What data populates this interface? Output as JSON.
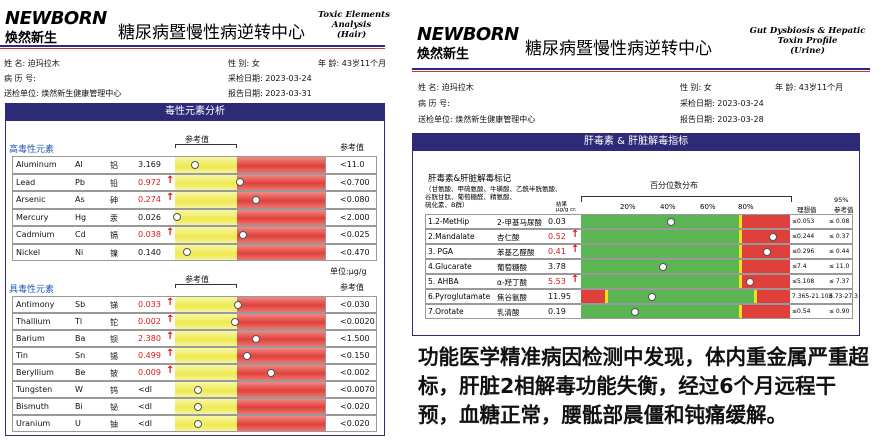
{
  "left_report": {
    "logo": {
      "brand": "NEWBORN",
      "cn": "焕然新生"
    },
    "title": "糖尿病暨慢性病逆转中心",
    "subtitle": [
      "Toxic Elements",
      "Analysis",
      "(Hair)"
    ],
    "patient": {
      "name": "姓    名: 迫玛拉木",
      "sex": "性    别: 女",
      "age": "年 龄: 43岁11个月",
      "record": "病 历 号:",
      "sample_date": "采检日期: 2023-03-24",
      "unit": "送检单位: 焕然新生健康管理中心",
      "report_date": "报告日期: 2023-03-31"
    },
    "section": "毒性元素分析",
    "ref_header": "参考值",
    "unit_note": "单位:μg/g",
    "groups": [
      {
        "name": "高毒性元素",
        "rows": [
          {
            "element": "Aluminum",
            "symbol": "Al",
            "cn": "铝",
            "value": "3.169",
            "high": false,
            "ref": "<11.0"
          },
          {
            "element": "Lead",
            "symbol": "Pb",
            "cn": "铅",
            "value": "0.972",
            "high": true,
            "ref": "<0.700"
          },
          {
            "element": "Arsenic",
            "symbol": "As",
            "cn": "砷",
            "value": "0.274",
            "high": true,
            "ref": "<0.080"
          },
          {
            "element": "Mercury",
            "symbol": "Hg",
            "cn": "汞",
            "value": "0.026",
            "high": false,
            "ref": "<2.000"
          },
          {
            "element": "Cadmium",
            "symbol": "Cd",
            "cn": "镉",
            "value": "0.038",
            "high": true,
            "ref": "<0.025"
          },
          {
            "element": "Nickel",
            "symbol": "Ni",
            "cn": "镍",
            "value": "0.140",
            "high": false,
            "ref": "<0.470"
          }
        ]
      },
      {
        "name": "具毒性元素",
        "rows": [
          {
            "element": "Antimony",
            "symbol": "Sb",
            "cn": "锑",
            "value": "0.033",
            "high": true,
            "ref": "<0.030"
          },
          {
            "element": "Thallium",
            "symbol": "Tl",
            "cn": "铊",
            "value": "0.002",
            "high": true,
            "ref": "<0.0020"
          },
          {
            "element": "Barium",
            "symbol": "Ba",
            "cn": "钡",
            "value": "2.380",
            "high": true,
            "ref": "<1.500"
          },
          {
            "element": "Tin",
            "symbol": "Sn",
            "cn": "锡",
            "value": "0.499",
            "high": true,
            "ref": "<0.150"
          },
          {
            "element": "Beryllium",
            "symbol": "Be",
            "cn": "铍",
            "value": "0.009",
            "high": true,
            "ref": "<0.002"
          },
          {
            "element": "Tungsten",
            "symbol": "W",
            "cn": "钨",
            "value": "<dl",
            "high": false,
            "ref": "<0.0070"
          },
          {
            "element": "Bismuth",
            "symbol": "Bi",
            "cn": "铋",
            "value": "<dl",
            "high": false,
            "ref": "<0.020"
          },
          {
            "element": "Uranium",
            "symbol": "U",
            "cn": "铀",
            "value": "<dl",
            "high": false,
            "ref": "<0.020"
          }
        ]
      }
    ]
  },
  "right_report": {
    "logo": {
      "brand": "NEWBORN",
      "cn": "焕然新生"
    },
    "title": "糖尿病暨慢性病逆转中心",
    "subtitle": [
      "Gut Dysbiosis & Hepatic",
      "Toxin Profile",
      "(Urine)"
    ],
    "patient": {
      "name": "姓    名: 迫玛拉木",
      "sex": "性    别: 女",
      "age": "年 龄: 43岁11个月",
      "record": "病 历 号:",
      "sample_date": "采检日期: 2023-03-24",
      "unit": "送检单位: 焕然新生健康管理中心",
      "report_date": "报告日期: 2023-03-28"
    },
    "section": "肝毒素 & 肝脏解毒指标",
    "group_title": "肝毒素&肝脏解毒标记",
    "group_note": [
      "（甘氨酸、甲硫氨酸、牛磺酸、乙酰半胱氨酸、",
      "谷胱甘肽、葡萄糖醛、精氨酸、",
      "硫化素、B群）"
    ],
    "percentile_title": "百分位数分布",
    "percentile_ticks": [
      "20%",
      "40%",
      "60%",
      "80%"
    ],
    "unit_label": [
      "结果",
      "μg/g cr."
    ],
    "ideal_header": "理想值",
    "ref_header": [
      "95%",
      "参考值"
    ],
    "rows": [
      {
        "name": "1.2-MetHip",
        "cn": "2-甲基马尿酸",
        "value": "0.03",
        "high": false,
        "ideal": "≤0.053",
        "ref": "≤ 0.08"
      },
      {
        "name": "2.Mandalate",
        "cn": "杏仁酸",
        "value": "0.52",
        "high": true,
        "ideal": "≤0.244",
        "ref": "≤ 0.37"
      },
      {
        "name": "3. PGA",
        "cn": "苯基乙醛酸",
        "value": "0.41",
        "high": true,
        "ideal": "≤0.296",
        "ref": "≤ 0.44"
      },
      {
        "name": "4.Glucarate",
        "cn": "葡萄糖酸",
        "value": "3.78",
        "high": false,
        "ideal": "≤7.4",
        "ref": "≤ 11.0"
      },
      {
        "name": "5. AHBA",
        "cn": "α-羟丁酸",
        "value": "5.53",
        "high": true,
        "ideal": "≤5.108",
        "ref": "≤ 7.37"
      },
      {
        "name": "6.Pyroglutamate",
        "cn": "焦谷氨酸",
        "value": "11.95",
        "high": false,
        "ideal": "7.365-21.103",
        "ref": "6.73-27.3"
      },
      {
        "name": "7.Orotate",
        "cn": "乳清酸",
        "value": "0.19",
        "high": false,
        "ideal": "≤0.54",
        "ref": "≤ 0.90"
      }
    ]
  },
  "caption": "功能医学精准病因检测中发现，体内重金属严重超标，肝脏2相解毒功能失衡，经过6个月远程干预，血糖正常，腰骶部晨僵和钝痛缓解。"
}
